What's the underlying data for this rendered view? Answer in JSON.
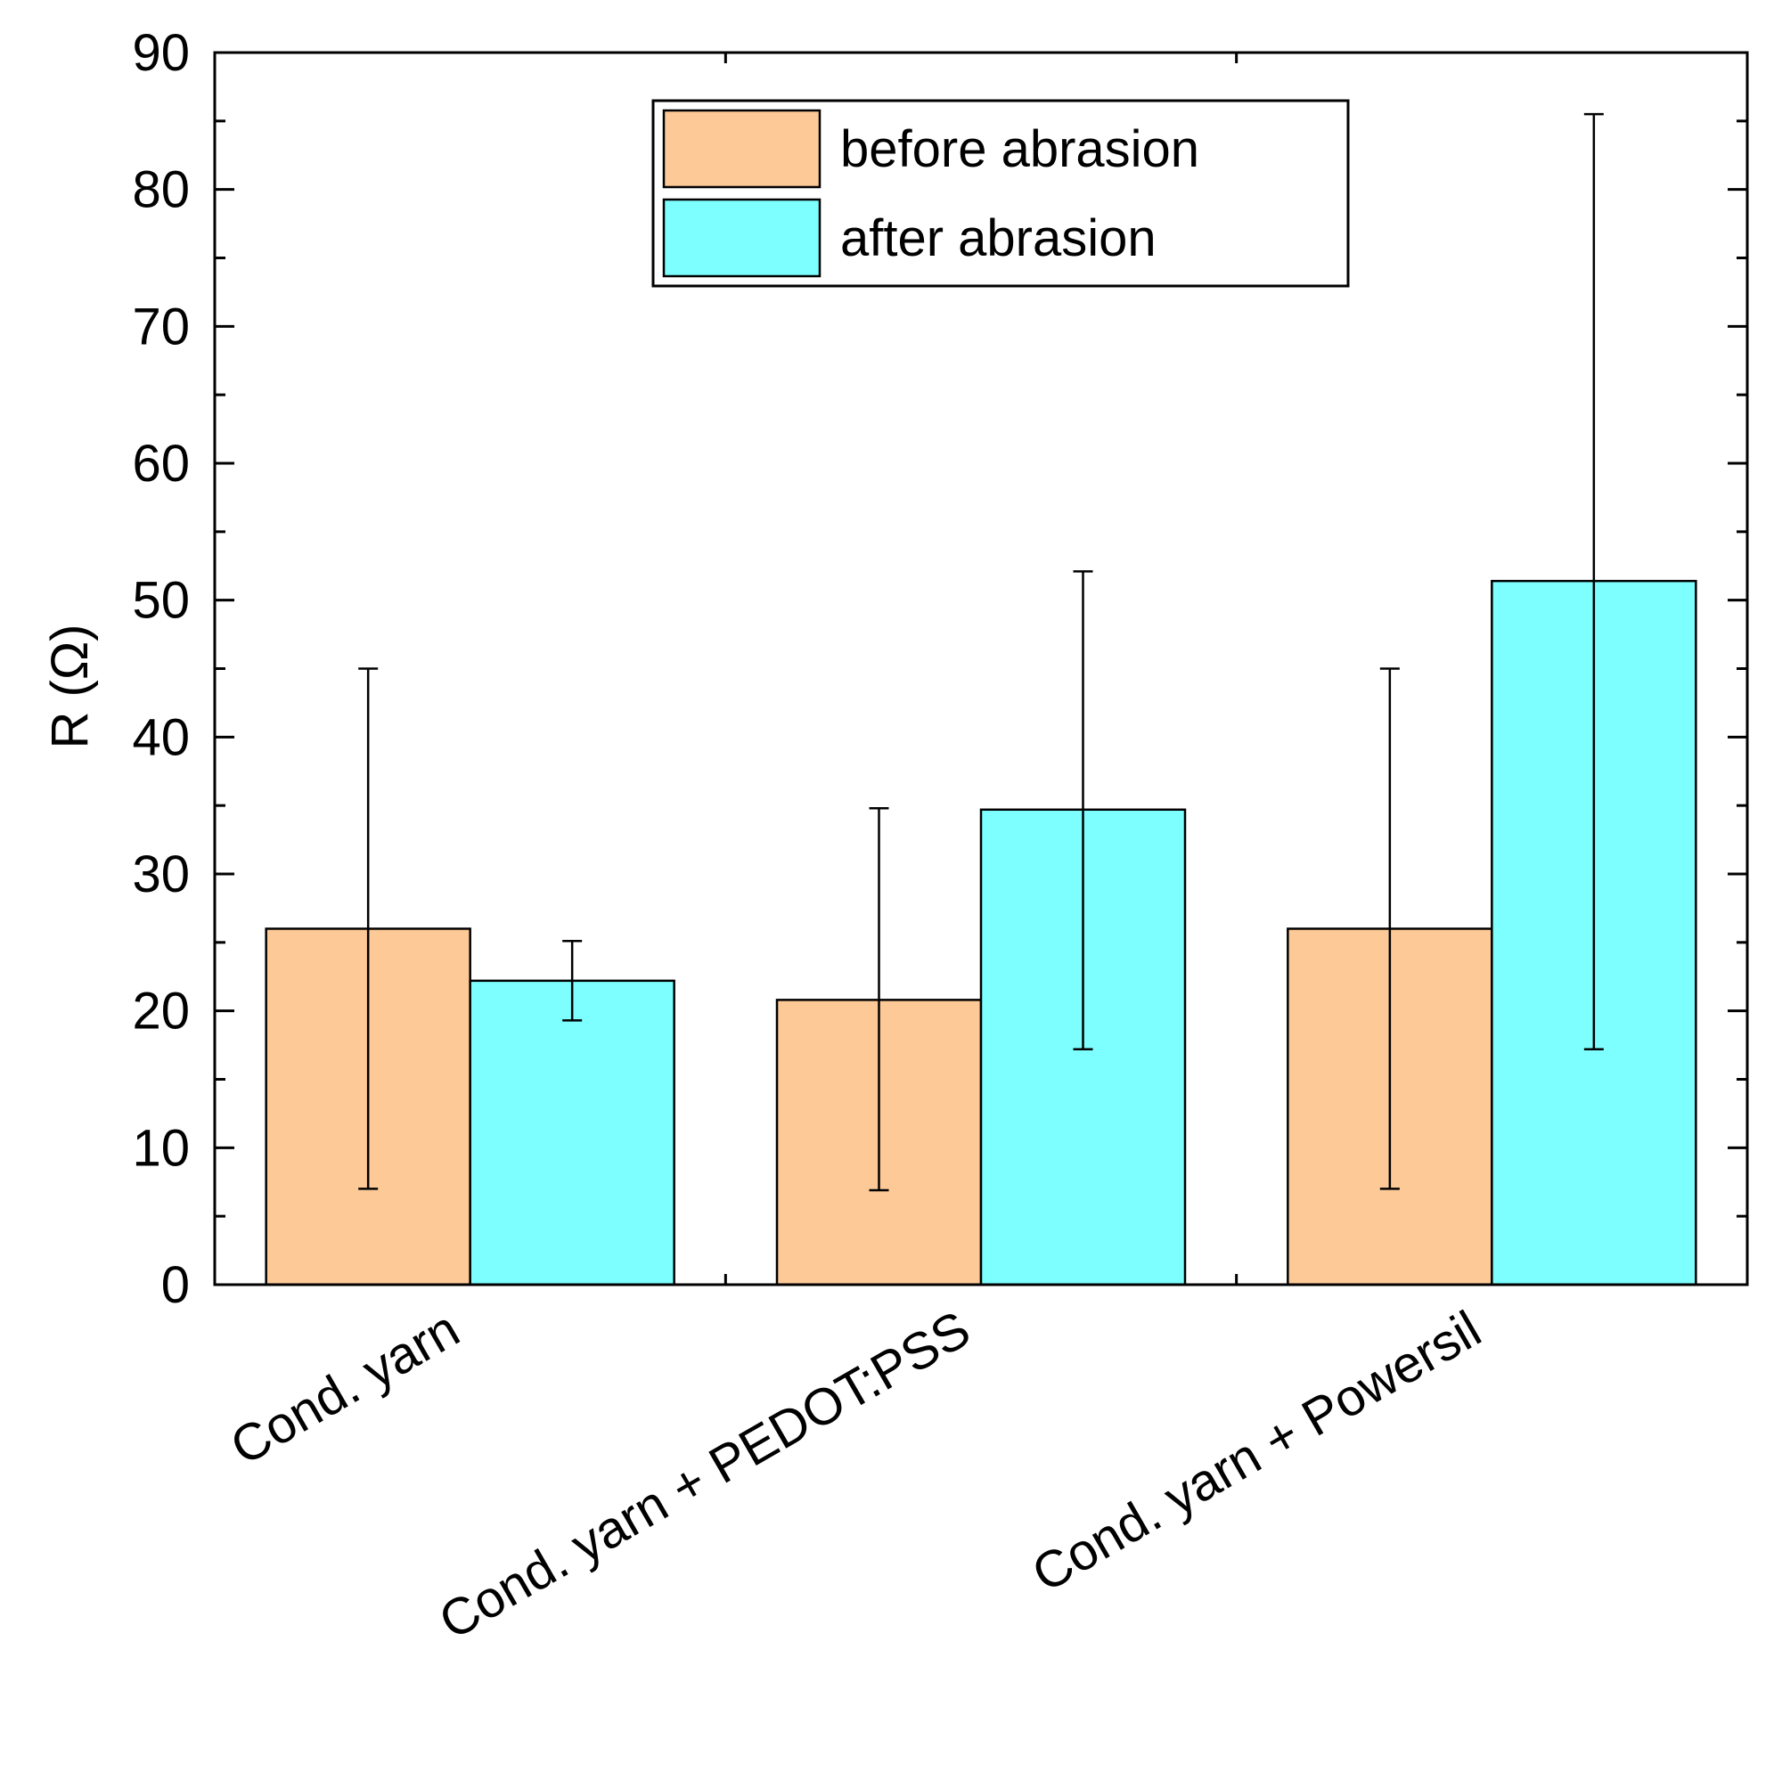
{
  "chart_data": {
    "type": "bar",
    "title": "",
    "xlabel": "",
    "ylabel": "R (Ω)",
    "ylim": [
      0,
      90
    ],
    "yticks": [
      0,
      10,
      20,
      30,
      40,
      50,
      60,
      70,
      80,
      90
    ],
    "categories": [
      "Cond. yarn",
      "Cond. yarn + PEDOT:PSS",
      "Cond. yarn + Powersil"
    ],
    "series": [
      {
        "name": "before abrasion",
        "color": "#fdc997",
        "values": [
          26,
          20.8,
          26
        ],
        "error_low": [
          7,
          6.9,
          7
        ],
        "error_high": [
          45,
          34.8,
          45
        ]
      },
      {
        "name": "after abrasion",
        "color": "#7dffff",
        "values": [
          22.2,
          34.7,
          51.4
        ],
        "error_low": [
          19.3,
          17.2,
          17.2
        ],
        "error_high": [
          25.1,
          52.1,
          85.5
        ]
      }
    ],
    "legend_position": "top-center",
    "grid": false
  }
}
